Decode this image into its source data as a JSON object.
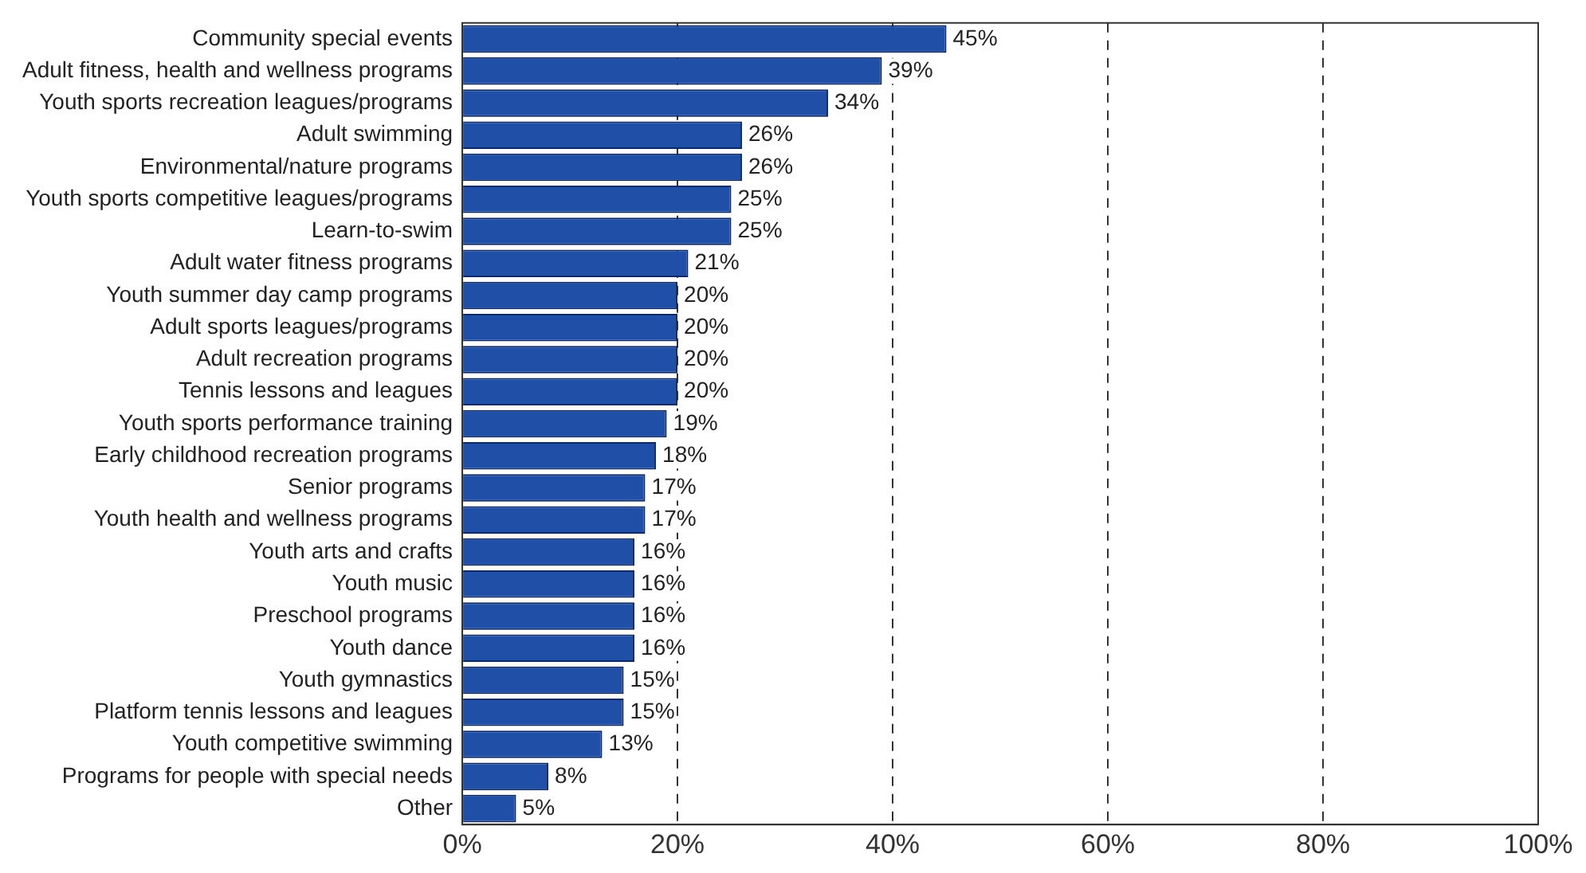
{
  "chart_data": {
    "type": "bar",
    "orientation": "horizontal",
    "categories": [
      "Community special events",
      "Adult fitness, health and wellness programs",
      "Youth sports recreation leagues/programs",
      "Adult swimming",
      "Environmental/nature programs",
      "Youth sports competitive leagues/programs",
      "Learn-to-swim",
      "Adult water fitness programs",
      "Youth summer day camp programs",
      "Adult sports leagues/programs",
      "Adult recreation programs",
      "Tennis lessons and leagues",
      "Youth sports performance training",
      "Early childhood recreation programs",
      "Senior programs",
      "Youth health and wellness programs",
      "Youth arts and crafts",
      "Youth music",
      "Preschool programs",
      "Youth dance",
      "Youth gymnastics",
      "Platform tennis lessons and leagues",
      "Youth competitive swimming",
      "Programs for people with special needs",
      "Other"
    ],
    "values": [
      45,
      39,
      34,
      26,
      26,
      25,
      25,
      21,
      20,
      20,
      20,
      20,
      19,
      18,
      17,
      17,
      16,
      16,
      16,
      16,
      15,
      15,
      13,
      8,
      5
    ],
    "value_labels": [
      "45%",
      "39%",
      "34%",
      "26%",
      "26%",
      "25%",
      "25%",
      "21%",
      "20%",
      "20%",
      "20%",
      "20%",
      "19%",
      "18%",
      "17%",
      "17%",
      "16%",
      "16%",
      "16%",
      "16%",
      "15%",
      "15%",
      "13%",
      "8%",
      "5%"
    ],
    "color": "#1f4fa6",
    "xlim": [
      0,
      100
    ],
    "xticks": [
      {
        "value": 0,
        "label": "0%"
      },
      {
        "value": 20,
        "label": "20%"
      },
      {
        "value": 40,
        "label": "40%"
      },
      {
        "value": 60,
        "label": "60%"
      },
      {
        "value": 80,
        "label": "80%"
      },
      {
        "value": 100,
        "label": "100%"
      }
    ],
    "grid": "x",
    "line_style": "dashed",
    "legend": false
  }
}
